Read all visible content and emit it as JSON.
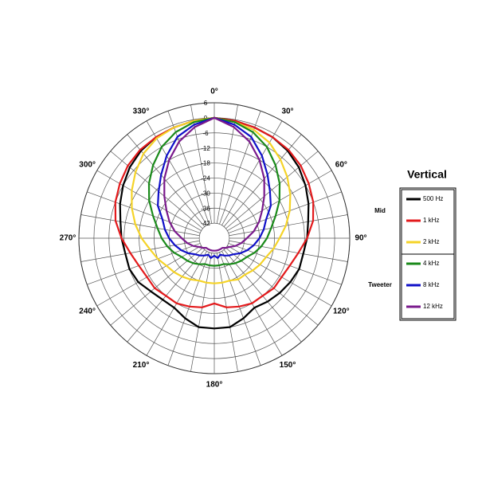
{
  "chart_data": {
    "type": "polar",
    "theta": [
      0,
      10,
      20,
      30,
      40,
      50,
      60,
      70,
      80,
      90,
      100,
      110,
      120,
      130,
      140,
      150,
      160,
      170,
      180,
      190,
      200,
      210,
      220,
      230,
      240,
      250,
      260,
      270,
      280,
      290,
      300,
      310,
      320,
      330,
      340,
      350
    ],
    "rlim": [
      -48,
      6
    ],
    "rticks": [
      6,
      0,
      -6,
      -12,
      -18,
      -24,
      -30,
      -36,
      -42
    ],
    "thetaticks": [
      {
        "value": 0,
        "label": "0°"
      },
      {
        "value": 30,
        "label": "30°"
      },
      {
        "value": 60,
        "label": "60°"
      },
      {
        "value": 90,
        "label": "90°"
      },
      {
        "value": 120,
        "label": "120°"
      },
      {
        "value": 150,
        "label": "150°"
      },
      {
        "value": 180,
        "label": "180°"
      },
      {
        "value": 210,
        "label": "210°"
      },
      {
        "value": 240,
        "label": "240°"
      },
      {
        "value": 270,
        "label": "270°"
      },
      {
        "value": 300,
        "label": "300°"
      },
      {
        "value": 330,
        "label": "330°"
      }
    ],
    "grid": true,
    "legend_title": "Vertical",
    "series": [
      {
        "name": "500 Hz",
        "group": "Mid",
        "color": "#000000",
        "values": [
          0,
          -0.5,
          -1,
          -1.5,
          -2.5,
          -4,
          -6,
          -8,
          -10,
          -11,
          -12,
          -12,
          -13,
          -14,
          -15,
          -16,
          -14,
          -12,
          -12,
          -12,
          -14,
          -16,
          -16,
          -15,
          -13,
          -12,
          -12,
          -11,
          -10,
          -8,
          -6,
          -4,
          -2.5,
          -1.5,
          -1,
          -0.5
        ]
      },
      {
        "name": "1 kHz",
        "group": "Mid",
        "color": "#e31a1c",
        "values": [
          0,
          -0.5,
          -1,
          -1.5,
          -2,
          -3,
          -4.5,
          -6,
          -8,
          -11,
          -14,
          -16,
          -17,
          -17,
          -18,
          -18,
          -19,
          -20,
          -22,
          -20,
          -19,
          -18,
          -18,
          -17,
          -17,
          -16,
          -14,
          -11,
          -8,
          -6,
          -4.5,
          -3,
          -2,
          -1.5,
          -1,
          -0.5
        ]
      },
      {
        "name": "2 kHz",
        "group": "Mid",
        "color": "#f5d327",
        "values": [
          0,
          -1,
          -2,
          -4,
          -7,
          -10,
          -13,
          -16,
          -19,
          -22,
          -24,
          -26,
          -27,
          -28,
          -29,
          -29,
          -30,
          -30,
          -30,
          -30,
          -30,
          -29,
          -28,
          -27,
          -26,
          -24,
          -22,
          -19,
          -16,
          -13,
          -10,
          -7,
          -4,
          -2,
          -1,
          -0.5
        ]
      },
      {
        "name": "4 kHz",
        "group": "Tweeter",
        "color": "#1a8a1a",
        "values": [
          0,
          -1,
          -3,
          -6,
          -10,
          -14,
          -18,
          -22,
          -25,
          -27,
          -29,
          -31,
          -33,
          -34,
          -35,
          -36,
          -37,
          -37,
          -37,
          -37,
          -37,
          -36,
          -35,
          -34,
          -33,
          -31,
          -29,
          -27,
          -25,
          -22,
          -18,
          -14,
          -10,
          -6,
          -3,
          -1
        ]
      },
      {
        "name": "8 kHz",
        "group": "Tweeter",
        "color": "#1010c8",
        "values": [
          0,
          -2,
          -5,
          -10,
          -15,
          -19,
          -22,
          -26,
          -28,
          -30,
          -32,
          -34,
          -36,
          -38,
          -39,
          -40,
          -41,
          -40,
          -41,
          -40,
          -41,
          -40,
          -39,
          -38,
          -36,
          -34,
          -32,
          -30,
          -28,
          -26,
          -22,
          -19,
          -15,
          -10,
          -5,
          -2
        ]
      },
      {
        "name": "12 kHz",
        "group": "Tweeter",
        "color": "#7a1a8c",
        "values": [
          0,
          -3,
          -7,
          -12,
          -17,
          -22,
          -26,
          -29,
          -32,
          -35,
          -37,
          -39,
          -41,
          -42,
          -43,
          -43,
          -43,
          -43,
          -43,
          -43,
          -43,
          -43,
          -43,
          -42,
          -41,
          -39,
          -37,
          -35,
          -32,
          -29,
          -26,
          -22,
          -17,
          -12,
          -7,
          -3
        ]
      }
    ]
  }
}
